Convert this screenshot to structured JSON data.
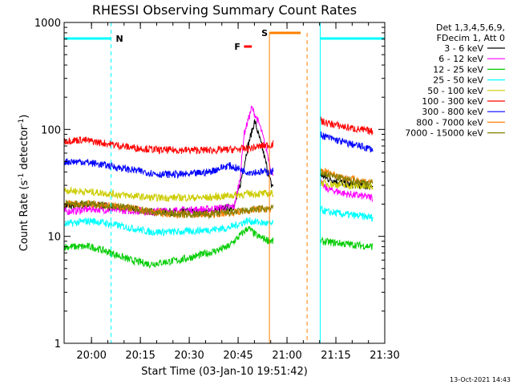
{
  "chart_data": {
    "type": "line",
    "title": "RHESSI Observing Summary Count Rates",
    "xlabel": "Start Time (03-Jan-10 19:51:42)",
    "ylabel_main": "Count Rate (s",
    "ylabel_sup1": "-1",
    "ylabel_mid": " detector",
    "ylabel_sup2": "-1",
    "ylabel_end": ")",
    "x_range_min": [
      19.86,
      21.5
    ],
    "yscale": "log",
    "ylim": [
      1,
      1000
    ],
    "grid": false,
    "x_tick_values": [
      20.0,
      20.25,
      20.5,
      20.75,
      21.0,
      21.25,
      21.5
    ],
    "x_tick_labels": [
      "20:00",
      "20:15",
      "20:30",
      "20:45",
      "21:00",
      "21:15",
      "21:30"
    ],
    "y_tick_values": [
      1,
      10,
      100,
      1000
    ],
    "y_tick_labels": [
      "1",
      "10",
      "100",
      "1000"
    ],
    "legend_header": [
      "Det 1,3,4,5,6,9,",
      "FDecim 1, Att 0"
    ],
    "legend_position": "top-right",
    "timestamp": "13-Oct-2021 14:43",
    "gaps": [
      [
        20.93,
        21.17
      ]
    ],
    "night_intervals": [
      [
        19.86,
        20.1
      ],
      [
        21.17,
        21.5
      ]
    ],
    "saa_interval": [
      20.91,
      21.07
    ],
    "flare_interval": [
      20.78,
      20.82
    ],
    "flag_labels": {
      "night": "N",
      "saa": "S",
      "flare": "F"
    },
    "series": [
      {
        "name": "3 - 6 keV",
        "color": "#000000",
        "points": [
          [
            19.86,
            19
          ],
          [
            20.0,
            20
          ],
          [
            20.3,
            17
          ],
          [
            20.6,
            17
          ],
          [
            20.73,
            19
          ],
          [
            20.76,
            30
          ],
          [
            20.8,
            70
          ],
          [
            20.835,
            120
          ],
          [
            20.88,
            60
          ],
          [
            20.92,
            30
          ],
          [
            21.17,
            38
          ],
          [
            21.2,
            35
          ],
          [
            21.3,
            31
          ],
          [
            21.44,
            29
          ]
        ]
      },
      {
        "name": "6 - 12 keV",
        "color": "#ff00ff",
        "points": [
          [
            19.86,
            17
          ],
          [
            20.0,
            18
          ],
          [
            20.3,
            17
          ],
          [
            20.6,
            18
          ],
          [
            20.73,
            19
          ],
          [
            20.76,
            35
          ],
          [
            20.78,
            90
          ],
          [
            20.82,
            160
          ],
          [
            20.86,
            110
          ],
          [
            20.9,
            60
          ],
          [
            20.92,
            40
          ],
          [
            21.17,
            32
          ],
          [
            21.2,
            28
          ],
          [
            21.3,
            25
          ],
          [
            21.44,
            23
          ]
        ]
      },
      {
        "name": "12 - 25 keV",
        "color": "#00cc00",
        "points": [
          [
            19.86,
            8
          ],
          [
            20.0,
            8
          ],
          [
            20.1,
            7
          ],
          [
            20.2,
            6
          ],
          [
            20.3,
            5.5
          ],
          [
            20.45,
            6
          ],
          [
            20.6,
            7
          ],
          [
            20.7,
            8
          ],
          [
            20.8,
            12
          ],
          [
            20.85,
            10
          ],
          [
            20.92,
            9
          ],
          [
            21.17,
            9
          ],
          [
            21.3,
            8.5
          ],
          [
            21.44,
            8
          ]
        ]
      },
      {
        "name": "25 - 50 keV",
        "color": "#00ffff",
        "points": [
          [
            19.86,
            13
          ],
          [
            20.0,
            14
          ],
          [
            20.1,
            13
          ],
          [
            20.2,
            12
          ],
          [
            20.3,
            11
          ],
          [
            20.45,
            11
          ],
          [
            20.6,
            11.5
          ],
          [
            20.7,
            12
          ],
          [
            20.8,
            14
          ],
          [
            20.92,
            13
          ],
          [
            21.17,
            18
          ],
          [
            21.2,
            17
          ],
          [
            21.3,
            16
          ],
          [
            21.44,
            15
          ]
        ]
      },
      {
        "name": "50 - 100 keV",
        "color": "#cccc00",
        "points": [
          [
            19.86,
            27
          ],
          [
            20.0,
            26
          ],
          [
            20.1,
            25
          ],
          [
            20.2,
            24
          ],
          [
            20.3,
            23
          ],
          [
            20.45,
            23
          ],
          [
            20.6,
            23
          ],
          [
            20.7,
            24
          ],
          [
            20.8,
            25
          ],
          [
            20.92,
            25
          ],
          [
            21.17,
            32
          ],
          [
            21.2,
            31
          ],
          [
            21.3,
            30
          ],
          [
            21.44,
            29
          ]
        ]
      },
      {
        "name": "100 - 300 keV",
        "color": "#ff0000",
        "points": [
          [
            19.86,
            78
          ],
          [
            19.95,
            80
          ],
          [
            20.05,
            75
          ],
          [
            20.2,
            68
          ],
          [
            20.35,
            64
          ],
          [
            20.5,
            64
          ],
          [
            20.65,
            64
          ],
          [
            20.8,
            66
          ],
          [
            20.87,
            70
          ],
          [
            20.92,
            72
          ],
          [
            21.17,
            120
          ],
          [
            21.2,
            115
          ],
          [
            21.3,
            105
          ],
          [
            21.44,
            95
          ]
        ]
      },
      {
        "name": "300 - 800 keV",
        "color": "#0000ff",
        "points": [
          [
            19.86,
            50
          ],
          [
            19.95,
            50
          ],
          [
            20.05,
            47
          ],
          [
            20.2,
            42
          ],
          [
            20.35,
            38
          ],
          [
            20.5,
            38
          ],
          [
            20.6,
            40
          ],
          [
            20.7,
            46
          ],
          [
            20.8,
            40
          ],
          [
            20.92,
            40
          ],
          [
            21.17,
            90
          ],
          [
            21.2,
            85
          ],
          [
            21.3,
            75
          ],
          [
            21.44,
            65
          ]
        ]
      },
      {
        "name": "800 - 7000 keV",
        "color": "#ff8000",
        "points": [
          [
            19.86,
            20
          ],
          [
            20.0,
            20
          ],
          [
            20.15,
            19
          ],
          [
            20.3,
            17
          ],
          [
            20.45,
            16
          ],
          [
            20.6,
            16
          ],
          [
            20.75,
            17
          ],
          [
            20.85,
            18
          ],
          [
            20.92,
            18
          ],
          [
            21.17,
            42
          ],
          [
            21.2,
            40
          ],
          [
            21.3,
            35
          ],
          [
            21.44,
            32
          ]
        ]
      },
      {
        "name": "7000 - 15000 keV",
        "color": "#808000",
        "points": [
          [
            19.86,
            20
          ],
          [
            20.0,
            20
          ],
          [
            20.15,
            19
          ],
          [
            20.3,
            17
          ],
          [
            20.45,
            16
          ],
          [
            20.6,
            16
          ],
          [
            20.75,
            17
          ],
          [
            20.85,
            18
          ],
          [
            20.92,
            18
          ],
          [
            21.17,
            40
          ],
          [
            21.2,
            38
          ],
          [
            21.3,
            34
          ],
          [
            21.44,
            31
          ]
        ]
      }
    ],
    "colors": {
      "night": "#00ffff",
      "saa": "#ff8000",
      "flare": "#ff0000"
    }
  }
}
